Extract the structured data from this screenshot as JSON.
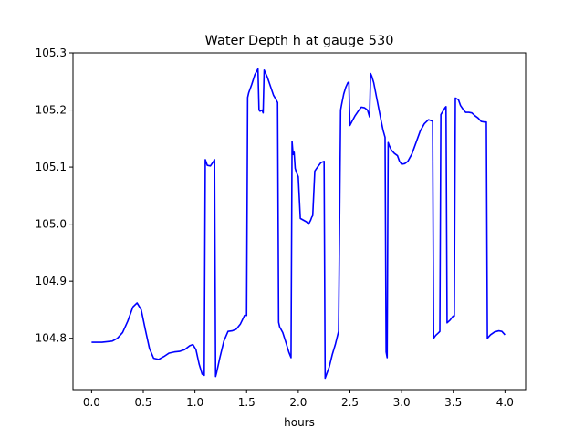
{
  "chart_data": {
    "type": "line",
    "title": "Water Depth h at gauge 530",
    "xlabel": "hours",
    "ylabel": "",
    "xlim": [
      -0.18,
      4.2
    ],
    "ylim": [
      104.71,
      105.3
    ],
    "grid": false,
    "legend": "none",
    "xticks": [
      0.0,
      0.5,
      1.0,
      1.5,
      2.0,
      2.5,
      3.0,
      3.5,
      4.0
    ],
    "xtick_labels": [
      "0.0",
      "0.5",
      "1.0",
      "1.5",
      "2.0",
      "2.5",
      "3.0",
      "3.5",
      "4.0"
    ],
    "yticks": [
      104.8,
      104.9,
      105.0,
      105.1,
      105.2,
      105.3
    ],
    "ytick_labels": [
      "104.8",
      "104.9",
      "105.0",
      "105.1",
      "105.2",
      "105.3"
    ],
    "series": [
      {
        "name": "",
        "color": "#0000ff",
        "x": [
          0.0,
          0.1,
          0.2,
          0.25,
          0.3,
          0.35,
          0.4,
          0.44,
          0.48,
          0.52,
          0.56,
          0.6,
          0.65,
          0.7,
          0.75,
          0.8,
          0.85,
          0.9,
          0.95,
          0.98,
          1.01,
          1.04,
          1.07,
          1.09,
          1.1,
          1.12,
          1.15,
          1.18,
          1.19,
          1.2,
          1.21,
          1.24,
          1.28,
          1.32,
          1.36,
          1.4,
          1.44,
          1.48,
          1.5,
          1.51,
          1.52,
          1.55,
          1.58,
          1.61,
          1.62,
          1.63,
          1.65,
          1.66,
          1.67,
          1.7,
          1.73,
          1.76,
          1.78,
          1.8,
          1.81,
          1.82,
          1.85,
          1.88,
          1.91,
          1.93,
          1.94,
          1.95,
          1.96,
          1.97,
          1.98,
          2.0,
          2.02,
          2.05,
          2.08,
          2.1,
          2.12,
          2.13,
          2.14,
          2.16,
          2.19,
          2.22,
          2.25,
          2.26,
          2.27,
          2.3,
          2.33,
          2.36,
          2.39,
          2.41,
          2.42,
          2.44,
          2.46,
          2.48,
          2.49,
          2.5,
          2.52,
          2.55,
          2.58,
          2.61,
          2.64,
          2.67,
          2.69,
          2.7,
          2.71,
          2.73,
          2.76,
          2.8,
          2.82,
          2.84,
          2.85,
          2.86,
          2.87,
          2.88,
          2.9,
          2.93,
          2.96,
          2.98,
          3.0,
          3.03,
          3.06,
          3.1,
          3.14,
          3.18,
          3.22,
          3.26,
          3.29,
          3.3,
          3.31,
          3.33,
          3.36,
          3.37,
          3.38,
          3.4,
          3.42,
          3.43,
          3.44,
          3.47,
          3.49,
          3.5,
          3.51,
          3.52,
          3.55,
          3.57,
          3.6,
          3.62,
          3.65,
          3.68,
          3.71,
          3.74,
          3.77,
          3.8,
          3.82,
          3.83,
          3.86,
          3.9,
          3.94,
          3.97,
          4.0
        ],
        "y": [
          104.793,
          104.793,
          104.795,
          104.8,
          104.81,
          104.83,
          104.855,
          104.862,
          104.85,
          104.815,
          104.782,
          104.765,
          104.763,
          104.768,
          104.774,
          104.776,
          104.777,
          104.78,
          104.787,
          104.789,
          104.78,
          104.755,
          104.737,
          104.735,
          105.113,
          105.103,
          105.102,
          105.11,
          105.113,
          104.733,
          104.74,
          104.765,
          104.795,
          104.812,
          104.813,
          104.816,
          104.825,
          104.84,
          104.84,
          105.222,
          105.23,
          105.245,
          105.262,
          105.272,
          105.2,
          105.198,
          105.2,
          105.195,
          105.27,
          105.258,
          105.242,
          105.226,
          105.22,
          105.213,
          104.828,
          104.82,
          104.81,
          104.793,
          104.775,
          104.766,
          105.145,
          105.122,
          105.126,
          105.098,
          105.092,
          105.083,
          105.01,
          105.007,
          105.004,
          105.0,
          105.007,
          105.012,
          105.015,
          105.093,
          105.101,
          105.108,
          105.11,
          104.73,
          104.735,
          104.75,
          104.772,
          104.79,
          104.812,
          105.2,
          105.21,
          105.228,
          105.24,
          105.248,
          105.249,
          105.173,
          105.18,
          105.19,
          105.198,
          105.205,
          105.204,
          105.2,
          105.188,
          105.264,
          105.26,
          105.248,
          105.22,
          105.183,
          105.165,
          105.152,
          104.776,
          104.766,
          105.143,
          105.138,
          105.13,
          105.124,
          105.12,
          105.11,
          105.105,
          105.106,
          105.11,
          105.123,
          105.143,
          105.163,
          105.176,
          105.183,
          105.181,
          105.181,
          104.8,
          104.805,
          104.81,
          104.812,
          105.192,
          105.198,
          105.204,
          105.206,
          104.827,
          104.832,
          104.837,
          104.839,
          104.839,
          105.221,
          105.218,
          105.208,
          105.2,
          105.196,
          105.196,
          105.195,
          105.19,
          105.186,
          105.18,
          105.179,
          105.179,
          104.8,
          104.806,
          104.811,
          104.813,
          104.812,
          104.806
        ]
      }
    ]
  }
}
